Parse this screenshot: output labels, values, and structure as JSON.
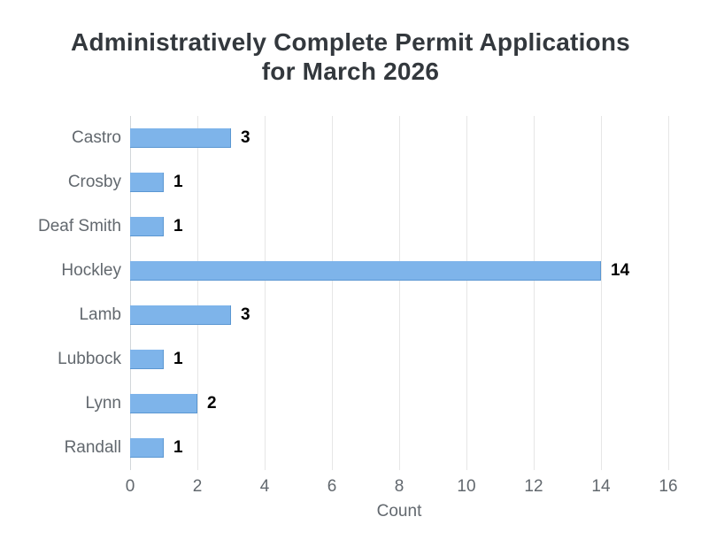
{
  "title": {
    "line1": "Administratively Complete Permit Applications",
    "line2": "for March 2026"
  },
  "chart_data": {
    "type": "bar",
    "orientation": "horizontal",
    "title": "Administratively Complete Permit Applications for March 2026",
    "categories": [
      "Castro",
      "Crosby",
      "Deaf Smith",
      "Hockley",
      "Lamb",
      "Lubbock",
      "Lynn",
      "Randall"
    ],
    "values": [
      3,
      1,
      1,
      14,
      3,
      1,
      2,
      1
    ],
    "data_labels": [
      "3",
      "1",
      "1",
      "14",
      "3",
      "1",
      "2",
      "1"
    ],
    "xlabel": "Count",
    "ylabel": "",
    "xlim": [
      0,
      16
    ],
    "xticks": [
      0,
      2,
      4,
      6,
      8,
      10,
      12,
      14,
      16
    ],
    "grid": "vertical gridlines at each x tick",
    "legend": "none"
  },
  "colors": {
    "background": "#ffffff",
    "bar": "#7eb4ea",
    "bar_edge": "#5b97d2",
    "gridline": "#e6e6e6",
    "axis_line": "#d2d6da",
    "title_text": "#33383d",
    "axis_text": "#62686e",
    "data_label_text": "#000000"
  }
}
